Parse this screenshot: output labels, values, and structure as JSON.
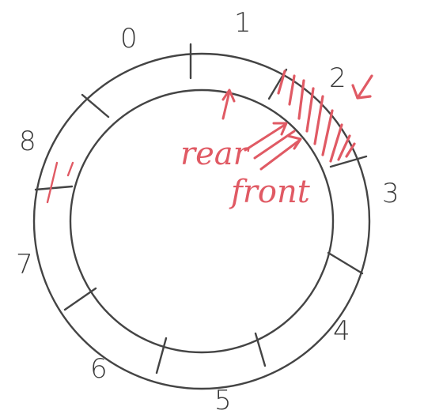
{
  "diagram": {
    "slots": [
      "0",
      "1",
      "2",
      "3",
      "4",
      "5",
      "6",
      "7",
      "8"
    ],
    "labels": {
      "rear": "rear",
      "front": "front"
    },
    "colors": {
      "ring": "#444444",
      "numbers": "#3a3a3a",
      "annotation": "#e05a64"
    }
  }
}
